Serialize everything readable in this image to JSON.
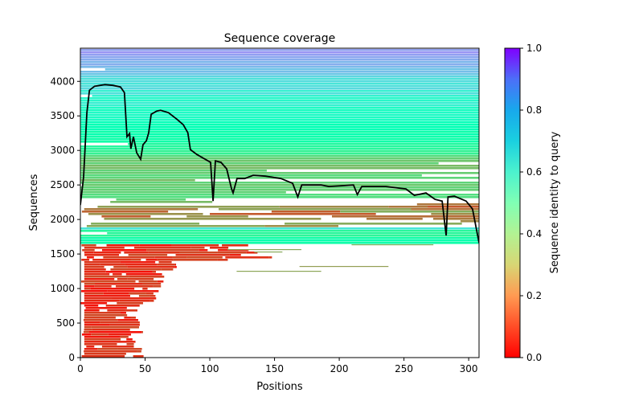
{
  "chart_data": {
    "type": "heatmap",
    "title": "Sequence coverage",
    "xlabel": "Positions",
    "ylabel": "Sequences",
    "xlim": [
      0,
      308
    ],
    "ylim": [
      0,
      4480
    ],
    "xticks": [
      0,
      50,
      100,
      150,
      200,
      250,
      300
    ],
    "yticks": [
      0,
      500,
      1000,
      1500,
      2000,
      2500,
      3000,
      3500,
      4000
    ],
    "colorbar": {
      "label": "Sequence identity to query",
      "colormap": "rainbow_r",
      "range": [
        0,
        1
      ],
      "ticks": [
        "0.0",
        "0.2",
        "0.4",
        "0.6",
        "0.8",
        "1.0"
      ]
    },
    "identity_bands": [
      {
        "y_from": 0,
        "y_to": 1620,
        "identity": 0.05,
        "coverage": "partial-n-terminal"
      },
      {
        "y_from": 1620,
        "y_to": 1850,
        "identity": 0.45,
        "coverage": "full"
      },
      {
        "y_from": 1850,
        "y_to": 1880,
        "identity": 0.65,
        "coverage": "full"
      },
      {
        "y_from": 1880,
        "y_to": 2200,
        "identity": 0.15,
        "coverage": "sparse"
      },
      {
        "y_from": 2200,
        "y_to": 2900,
        "identity": 0.3,
        "coverage": "mostly-full"
      },
      {
        "y_from": 2900,
        "y_to": 4050,
        "identity": 0.5,
        "coverage": "full"
      },
      {
        "y_from": 4050,
        "y_to": 4480,
        "identity": 0.7,
        "coverage": "full"
      }
    ],
    "coverage_line": {
      "name": "coverage",
      "color": "#000000",
      "x": [
        0,
        2.5,
        5,
        7,
        11,
        19,
        25,
        31,
        34,
        36,
        38,
        39,
        41,
        43.5,
        46.6,
        48.4,
        51,
        52.8,
        54.7,
        59,
        62,
        68,
        74.5,
        79.5,
        83,
        85,
        90,
        100.6,
        102.5,
        104.3,
        108.7,
        113,
        116.8,
        118,
        121,
        127,
        133.5,
        143,
        155,
        164,
        168,
        171,
        186,
        192,
        211,
        214,
        217.4,
        236,
        251.5,
        258,
        267,
        274,
        279.5,
        282.6,
        284,
        289,
        298,
        303,
        308
      ],
      "y": [
        2210,
        2616,
        3547,
        3872,
        3930,
        3953,
        3942,
        3919,
        3837,
        3198,
        3244,
        3023,
        3198,
        2965,
        2872,
        3081,
        3140,
        3256,
        3523,
        3570,
        3581,
        3547,
        3453,
        3372,
        3256,
        3012,
        2942,
        2826,
        2267,
        2849,
        2826,
        2733,
        2442,
        2384,
        2593,
        2593,
        2640,
        2628,
        2593,
        2523,
        2326,
        2500,
        2500,
        2477,
        2500,
        2360,
        2477,
        2477,
        2442,
        2349,
        2384,
        2291,
        2267,
        1767,
        2326,
        2337,
        2267,
        2151,
        1663
      ]
    }
  }
}
